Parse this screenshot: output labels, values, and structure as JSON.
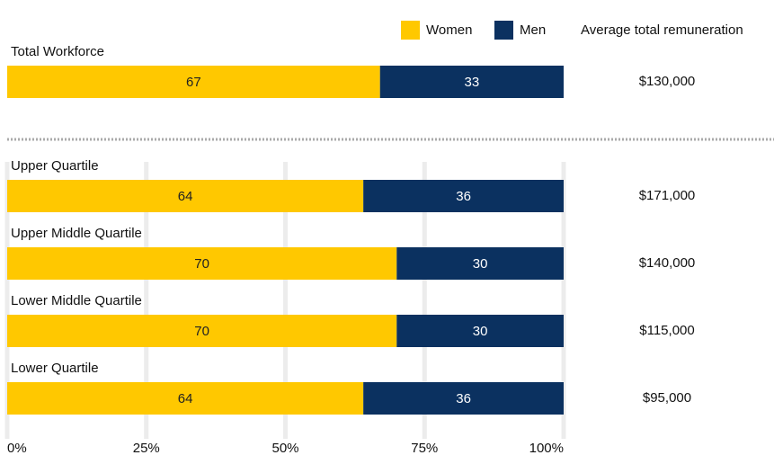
{
  "chart_data": {
    "type": "bar",
    "orientation": "horizontal",
    "stacked": true,
    "categories": [
      "Total Workforce",
      "Upper Quartile",
      "Upper Middle Quartile",
      "Lower Middle Quartile",
      "Lower Quartile"
    ],
    "series": [
      {
        "name": "Women",
        "color": "#ffc800",
        "values": [
          67,
          64,
          70,
          70,
          64
        ]
      },
      {
        "name": "Men",
        "color": "#0b3160",
        "values": [
          33,
          36,
          30,
          30,
          36
        ]
      }
    ],
    "xlim": [
      0,
      100
    ],
    "xticks": [
      {
        "value": 0,
        "label": "0%"
      },
      {
        "value": 25,
        "label": "25%"
      },
      {
        "value": 50,
        "label": "50%"
      },
      {
        "value": 75,
        "label": "75%"
      },
      {
        "value": 100,
        "label": "100%"
      }
    ],
    "grid": true,
    "remuneration": {
      "title": "Average total remuneration",
      "values": [
        130000,
        171000,
        140000,
        115000,
        95000
      ],
      "value_labels": [
        "$130,000",
        "$171,000",
        "$140,000",
        "$115,000",
        "$95,000"
      ]
    }
  }
}
